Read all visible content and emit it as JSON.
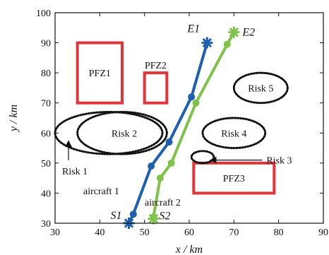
{
  "chart_data": {
    "type": "line",
    "xlabel": "x / km",
    "ylabel": "y / km",
    "xlim": [
      30,
      90
    ],
    "ylim": [
      30,
      100
    ],
    "xticks": [
      30,
      40,
      50,
      60,
      70,
      80,
      90
    ],
    "yticks": [
      30,
      40,
      50,
      60,
      70,
      80,
      90,
      100
    ],
    "grid": false,
    "series": [
      {
        "name": "aircraft 1",
        "color": "#1f5fb0",
        "marker": "circle",
        "x": [
          46.5,
          47.5,
          51.5,
          55.5,
          60.5,
          64.0
        ],
        "y": [
          30,
          33,
          49,
          57,
          72,
          90
        ],
        "start_label": "S1",
        "end_label": "E1"
      },
      {
        "name": "aircraft 2",
        "color": "#7fc24a",
        "marker": "circle",
        "x": [
          52.0,
          52.0,
          53.5,
          56.0,
          61.5,
          68.5,
          70.0
        ],
        "y": [
          31.5,
          32,
          45,
          50,
          70,
          89.5,
          93.5
        ],
        "start_label": "S2",
        "end_label": "E2"
      }
    ],
    "zones": [
      {
        "name": "PFZ1",
        "type": "rect",
        "x": [
          35,
          45
        ],
        "y": [
          70,
          90
        ],
        "color": "#e0353a"
      },
      {
        "name": "PFZ2",
        "type": "rect",
        "x": [
          50,
          55
        ],
        "y": [
          70,
          80
        ],
        "color": "#e0353a"
      },
      {
        "name": "PFZ3",
        "type": "rect",
        "x": [
          61,
          79
        ],
        "y": [
          40,
          50
        ],
        "color": "#e0353a"
      },
      {
        "name": "Risk 1",
        "type": "ellipse",
        "cx": 42,
        "cy": 60,
        "rx": 12,
        "ry": 7
      },
      {
        "name": "Risk 2",
        "type": "ellipse",
        "cx": 45,
        "cy": 60,
        "rx": 10,
        "ry": 7
      },
      {
        "name": "Risk 3",
        "type": "ellipse",
        "cx": 63,
        "cy": 52,
        "rx": 2.5,
        "ry": 2
      },
      {
        "name": "Risk 4",
        "type": "ellipse",
        "cx": 70,
        "cy": 60,
        "rx": 7,
        "ry": 5
      },
      {
        "name": "Risk 5",
        "type": "ellipse",
        "cx": 76,
        "cy": 75,
        "rx": 6,
        "ry": 5
      }
    ],
    "annotations": [
      {
        "text": "Risk 1",
        "arrow_to": [
          33,
          58
        ]
      },
      {
        "text": "Risk 3",
        "arrow_to": [
          64,
          51
        ]
      }
    ]
  }
}
